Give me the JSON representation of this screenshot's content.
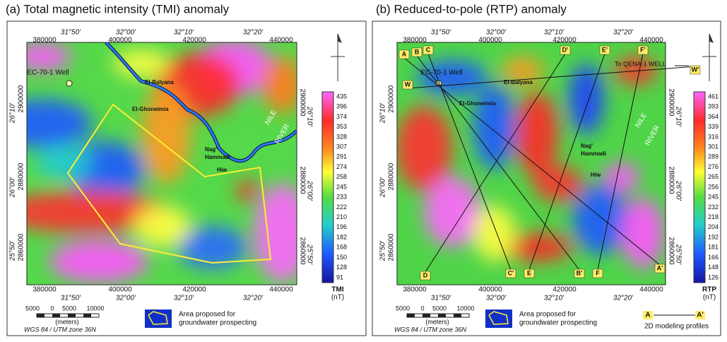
{
  "panels": [
    {
      "title": "(a) Total magnetic intensity (TMI) anomaly",
      "top_lon": [
        "31°50'",
        "32°00'",
        "32°10'",
        "32°20'"
      ],
      "top_utm": [
        "380000",
        "400000",
        "420000",
        "440000"
      ],
      "bottom_utm": [
        "380000",
        "400000",
        "420000",
        "440000"
      ],
      "bottom_lon": [
        "31°50'",
        "32°00'",
        "32°10'",
        "32°20'"
      ],
      "left_labels": [
        "2900000",
        "26°10'",
        "2880000",
        "26°00'",
        "2860000",
        "25°50'"
      ],
      "right_labels": [
        "2900000",
        "26°10'",
        "2880000",
        "26°00'",
        "2860000",
        "25°50'"
      ],
      "places": [
        "EC-70-1 Well",
        "El-Balyana",
        "El-Ghoneimia",
        "Nag'",
        "Hammadi",
        "Hiw",
        "NILE",
        "RIVER"
      ],
      "colorbar": {
        "labels": [
          "435",
          "396",
          "374",
          "353",
          "328",
          "307",
          "291",
          "274",
          "258",
          "245",
          "233",
          "222",
          "210",
          "196",
          "182",
          "168",
          "150",
          "128",
          "91"
        ],
        "title": "TMI",
        "unit": "(nT)"
      },
      "scale": {
        "labels": [
          "5000",
          "0",
          "5000",
          "10000"
        ],
        "unit": "(meters)",
        "datum": "WGS 84 / UTM zone 36N"
      },
      "legend": [
        "Area proposed for",
        "groundwater prospecting"
      ]
    },
    {
      "title": "(b) Reduced-to-pole (RTP) anomaly",
      "top_lon": [
        "31°50'",
        "32°00'",
        "32°10'",
        "32°20'"
      ],
      "top_utm": [
        "380000",
        "400000",
        "420000",
        "440000"
      ],
      "bottom_utm": [
        "380000",
        "400000",
        "420000",
        "440000"
      ],
      "bottom_lon": [
        "31°50'",
        "32°00'",
        "32°10'",
        "32°20'"
      ],
      "left_labels": [
        "2900000",
        "26°10'",
        "2880000",
        "26°00'",
        "2860000",
        "25°50'"
      ],
      "right_labels": [
        "2900000",
        "26°10'",
        "2880000",
        "26°00'",
        "2860000",
        "25°50'"
      ],
      "places": [
        "EC-70-1 Well",
        "El-Balyana",
        "El-Ghoneimia",
        "Nag'",
        "Hammadi",
        "Hiw",
        "NILE",
        "RIVER"
      ],
      "colorbar": {
        "labels": [
          "461",
          "393",
          "364",
          "339",
          "316",
          "301",
          "289",
          "276",
          "265",
          "256",
          "245",
          "232",
          "218",
          "204",
          "192",
          "181",
          "166",
          "148",
          "126"
        ],
        "title": "RTP",
        "unit": "(nT)"
      },
      "scale": {
        "labels": [
          "5000",
          "0",
          "5000",
          "10000"
        ],
        "unit": "(meters)",
        "datum": "WGS 84 / UTM zone 36N"
      },
      "legend": [
        "Area proposed for",
        "groundwater prospecting"
      ],
      "profiles": [
        "A",
        "B",
        "C",
        "D'",
        "E'",
        "F'",
        "W",
        "W'",
        "D",
        "C'",
        "E",
        "B'",
        "F",
        "A'"
      ],
      "arrow_label": "To QENA-1 WELL",
      "profile_legend": {
        "start": "A",
        "end": "A'",
        "text": "2D modeling profiles"
      }
    }
  ]
}
